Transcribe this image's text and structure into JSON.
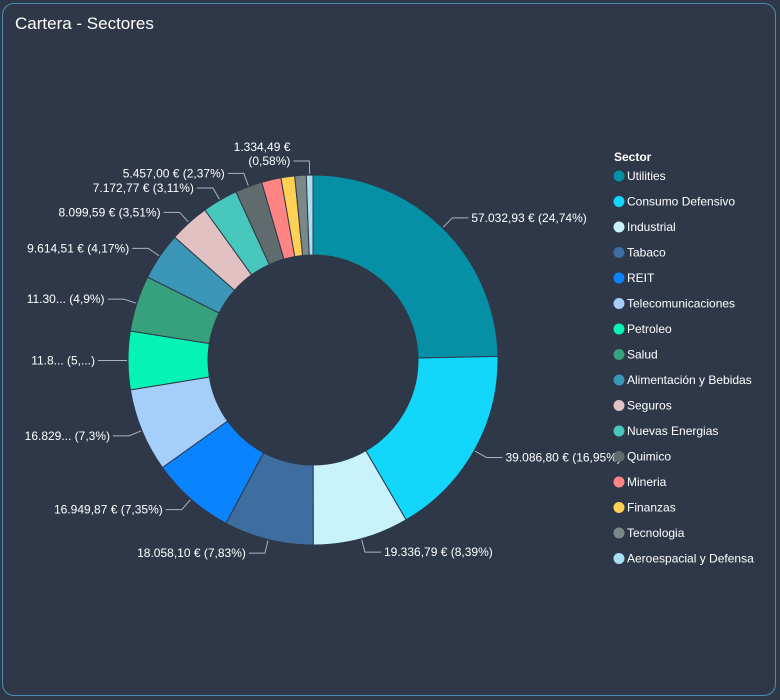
{
  "panel": {
    "title": "Cartera - Sectores"
  },
  "chart_data": {
    "type": "pie",
    "variant": "donut",
    "legend_title": "Sector",
    "legend_position": "right",
    "categories": [
      "Utilities",
      "Consumo Defensivo",
      "Industrial",
      "Tabaco",
      "REIT",
      "Telecomunicaciones",
      "Petroleo",
      "Salud",
      "Alimentación y Bebidas",
      "Seguros",
      "Nuevas Energias",
      "Quimico",
      "Mineria",
      "Finanzas",
      "Tecnologia",
      "Aeroespacial y Defensa"
    ],
    "values": [
      24.74,
      16.95,
      8.39,
      7.83,
      7.35,
      7.3,
      5.1,
      4.9,
      4.17,
      3.51,
      3.11,
      2.37,
      1.7,
      1.2,
      1.0,
      0.58
    ],
    "colors": [
      "#0590a6",
      "#12d6fa",
      "#c8f3fd",
      "#3d6e9f",
      "#0a83ff",
      "#a5cffb",
      "#06f3b6",
      "#37a07c",
      "#3c96b8",
      "#e1c1c1",
      "#48c8bc",
      "#5f6b6d",
      "#fe8583",
      "#fed155",
      "#7a8987",
      "#a8dff5"
    ],
    "data_labels": [
      {
        "index": 0,
        "lines": [
          "57.032,93 € (24,74%)"
        ]
      },
      {
        "index": 1,
        "lines": [
          "39.086,80 € (16,95%)"
        ]
      },
      {
        "index": 2,
        "lines": [
          "19.336,79 € (8,39%)"
        ]
      },
      {
        "index": 3,
        "lines": [
          "18.058,10 € (7,83%)"
        ]
      },
      {
        "index": 4,
        "lines": [
          "16.949,87 € (7,35%)"
        ]
      },
      {
        "index": 5,
        "lines": [
          "16.829... (7,3%)"
        ]
      },
      {
        "index": 6,
        "lines": [
          "11.8... (5,...)"
        ]
      },
      {
        "index": 7,
        "lines": [
          "11.30... (4,9%)"
        ]
      },
      {
        "index": 8,
        "lines": [
          "9.614,51 € (4,17%)"
        ]
      },
      {
        "index": 9,
        "lines": [
          "8.099,59 € (3,51%)"
        ]
      },
      {
        "index": 10,
        "lines": [
          "7.172,77 € (3,11%)"
        ]
      },
      {
        "index": 11,
        "lines": [
          "5.457,00 € (2,37%)"
        ]
      },
      {
        "index": 15,
        "lines": [
          "1.334,49 €",
          "(0,58%)"
        ]
      }
    ]
  }
}
